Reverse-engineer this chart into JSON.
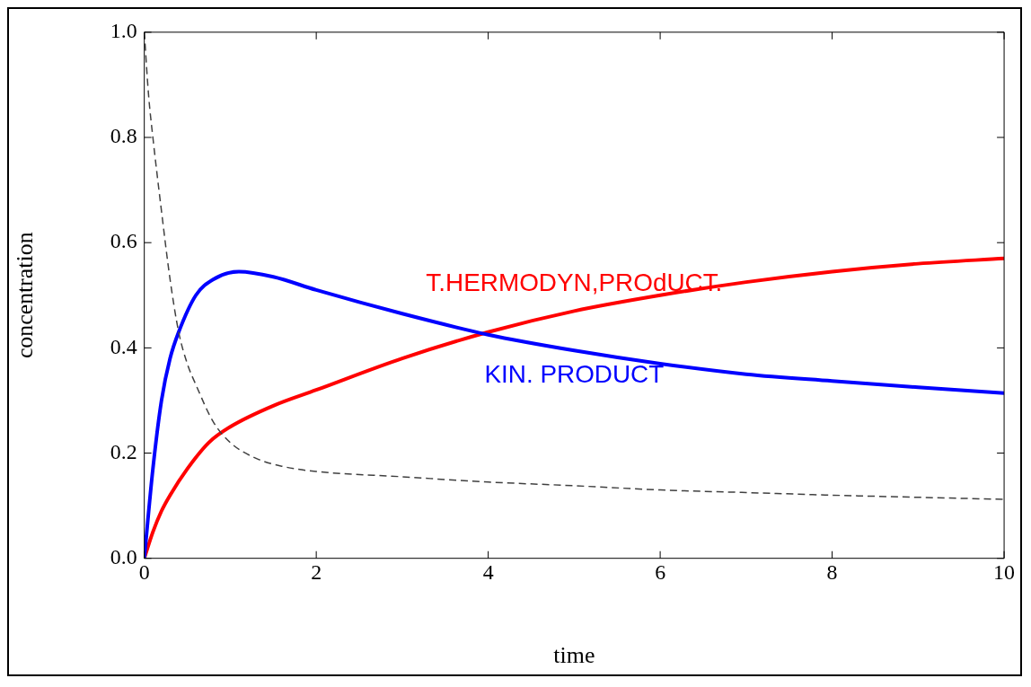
{
  "chart_data": {
    "type": "line",
    "xlabel": "time",
    "ylabel": "concentration",
    "xlim": [
      0,
      10
    ],
    "ylim": [
      0,
      1.0
    ],
    "xticks": [
      0,
      2,
      4,
      6,
      8,
      10
    ],
    "yticks": [
      {
        "value": 0,
        "label": "0.0"
      },
      {
        "value": 0.2,
        "label": "0.2"
      },
      {
        "value": 0.4,
        "label": "0.4"
      },
      {
        "value": 0.6,
        "label": "0.6"
      },
      {
        "value": 0.8,
        "label": "0.8"
      },
      {
        "value": 1.0,
        "label": "1.0"
      }
    ],
    "grid": false,
    "legend": false,
    "marker": "none",
    "series": [
      {
        "color": "#404040",
        "line_style": "dashed",
        "x": [
          0,
          0.05,
          0.1,
          0.2,
          0.3,
          0.4,
          0.5,
          0.6,
          0.8,
          1,
          1.3,
          1.6,
          2,
          3,
          4,
          5,
          6,
          7,
          8,
          9,
          10
        ],
        "values": [
          1.0,
          0.88,
          0.8,
          0.66,
          0.53,
          0.43,
          0.37,
          0.33,
          0.26,
          0.22,
          0.19,
          0.175,
          0.165,
          0.155,
          0.145,
          0.138,
          0.13,
          0.125,
          0.12,
          0.116,
          0.112
        ]
      },
      {
        "name": "KIN. PRODUCT",
        "color": "#0000ff",
        "line_style": "solid",
        "x": [
          0,
          0.1,
          0.2,
          0.3,
          0.4,
          0.6,
          0.8,
          1.1,
          1.5,
          2,
          3,
          4,
          5,
          6,
          7,
          8,
          9,
          10
        ],
        "values": [
          0,
          0.17,
          0.3,
          0.38,
          0.43,
          0.5,
          0.53,
          0.545,
          0.535,
          0.51,
          0.465,
          0.425,
          0.395,
          0.37,
          0.35,
          0.337,
          0.325,
          0.314
        ]
      },
      {
        "name": "T.HERMODYN,PROdUCT.",
        "color": "#ff0000",
        "line_style": "solid",
        "x": [
          0,
          0.1,
          0.2,
          0.3,
          0.5,
          0.75,
          1,
          1.5,
          2,
          3,
          4,
          5,
          6,
          7,
          8,
          9,
          10
        ],
        "values": [
          0,
          0.05,
          0.09,
          0.12,
          0.17,
          0.22,
          0.25,
          0.29,
          0.32,
          0.38,
          0.43,
          0.47,
          0.5,
          0.525,
          0.545,
          0.56,
          0.57
        ]
      }
    ]
  }
}
